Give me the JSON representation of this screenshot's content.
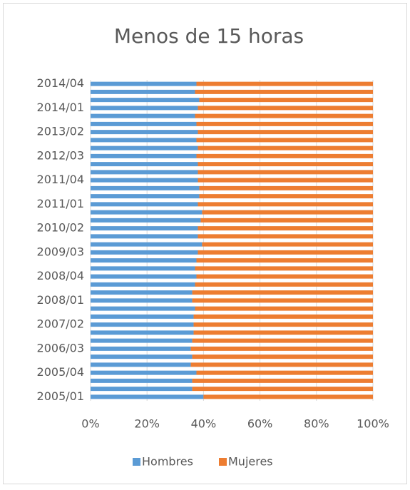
{
  "chart_data": {
    "type": "stacked_bar_horizontal",
    "title": "Menos de 15 horas",
    "categories": [
      "2005/01",
      null,
      null,
      "2005/04",
      null,
      null,
      "2006/03",
      null,
      null,
      "2007/02",
      null,
      null,
      "2008/01",
      null,
      null,
      "2008/04",
      null,
      null,
      "2009/03",
      null,
      null,
      "2010/02",
      null,
      null,
      "2011/01",
      null,
      null,
      "2011/04",
      null,
      null,
      "2012/03",
      null,
      null,
      "2013/02",
      null,
      null,
      "2014/01",
      null,
      null,
      "2014/04"
    ],
    "series": [
      {
        "name": "Hombres",
        "color": "#5b9bd5",
        "values": [
          40,
          36,
          36,
          37.5,
          35.5,
          36,
          35.5,
          36,
          36.5,
          36.5,
          36.5,
          37,
          36,
          36,
          37,
          37.5,
          37,
          37.5,
          38,
          39.5,
          38,
          38,
          39,
          39.5,
          38,
          38.5,
          38.5,
          38,
          38,
          38,
          37.5,
          38,
          37.5,
          38,
          37.5,
          37,
          38,
          38.5,
          37,
          37.5
        ]
      },
      {
        "name": "Mujeres",
        "color": "#ed7d31",
        "values": [
          60,
          64,
          64,
          62.5,
          64.5,
          64,
          64.5,
          64,
          63.5,
          63.5,
          63.5,
          63,
          64,
          64,
          63,
          62.5,
          63,
          62.5,
          62,
          60.5,
          62,
          62,
          61,
          60.5,
          62,
          61.5,
          61.5,
          62,
          62,
          62,
          62.5,
          62,
          62.5,
          62,
          62.5,
          63,
          62,
          61.5,
          63,
          62.5
        ]
      }
    ],
    "xlim": [
      0,
      100
    ],
    "xticks": [
      {
        "value": 0,
        "label": "0%"
      },
      {
        "value": 20,
        "label": "20%"
      },
      {
        "value": 40,
        "label": "40%"
      },
      {
        "value": 60,
        "label": "60%"
      },
      {
        "value": 80,
        "label": "80%"
      },
      {
        "value": 100,
        "label": "100%"
      }
    ],
    "grid": true,
    "legend": "bottom"
  }
}
